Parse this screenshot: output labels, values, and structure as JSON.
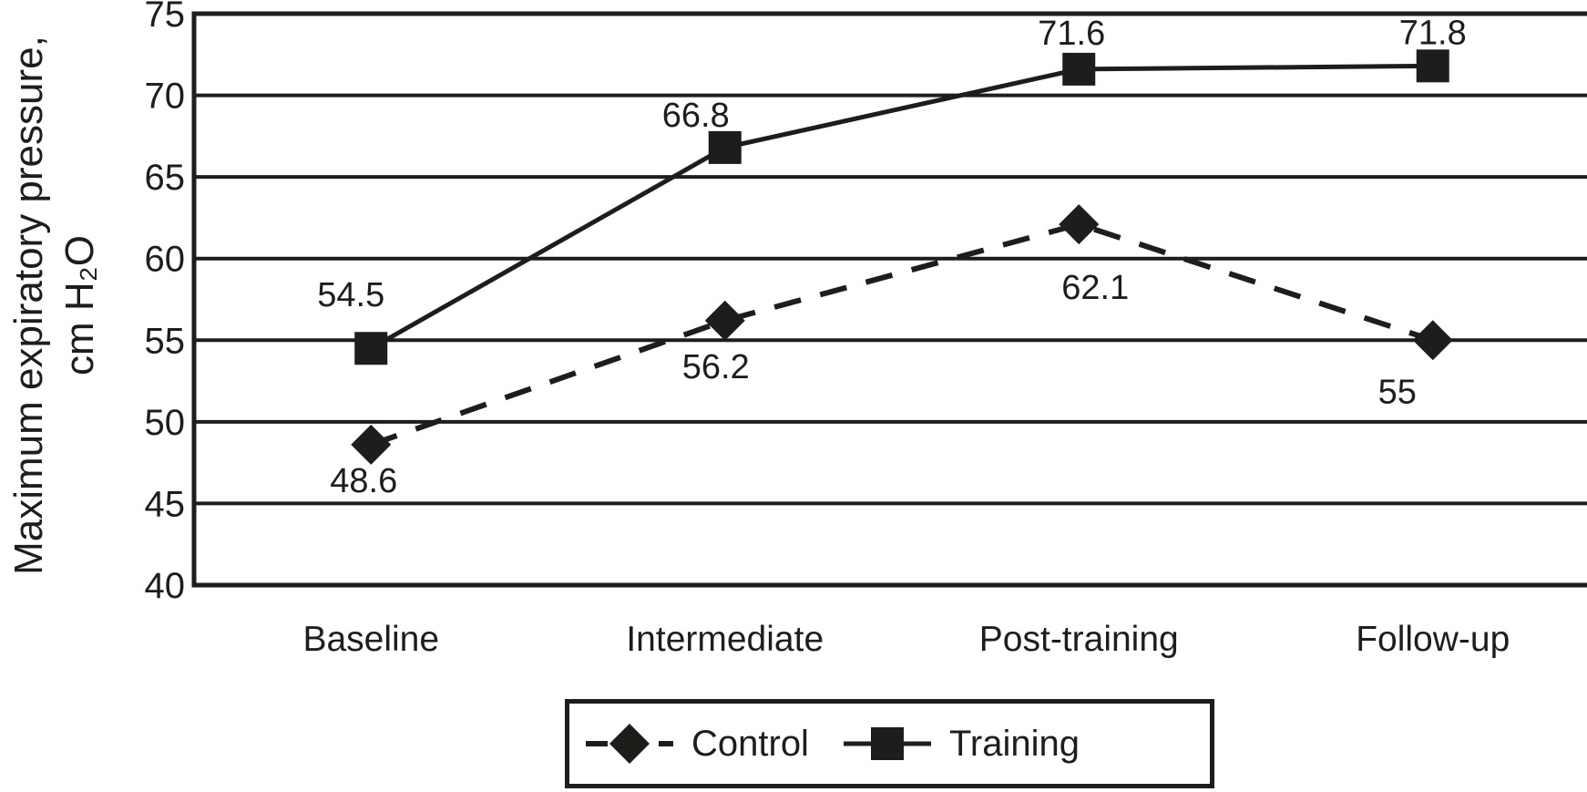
{
  "chart_data": {
    "type": "line",
    "title": "",
    "categories": [
      "Baseline",
      "Intermediate",
      "Post-training",
      "Follow-up"
    ],
    "series": [
      {
        "name": "Control",
        "values": [
          48.6,
          56.2,
          62.1,
          55
        ],
        "labels": [
          "48.6",
          "56.2",
          "62.1",
          "55"
        ],
        "marker": "diamond",
        "line_style": "dashed",
        "label_side": "below"
      },
      {
        "name": "Training",
        "values": [
          54.5,
          66.8,
          71.6,
          71.8
        ],
        "labels": [
          "54.5",
          "66.8",
          "71.6",
          "71.8"
        ],
        "marker": "square",
        "line_style": "solid",
        "label_side": "above"
      }
    ],
    "ylabel_line1": "Maximum expiratory pressure,",
    "ylabel_line2": "cm H₂O",
    "xlabel": "",
    "ylim": [
      40,
      75
    ],
    "yticks": [
      40,
      45,
      50,
      55,
      60,
      65,
      70,
      75
    ],
    "grid": "horizontal",
    "legend_position": "bottom-center",
    "series_color": "#1d1d1b",
    "background": "#ffffff"
  }
}
